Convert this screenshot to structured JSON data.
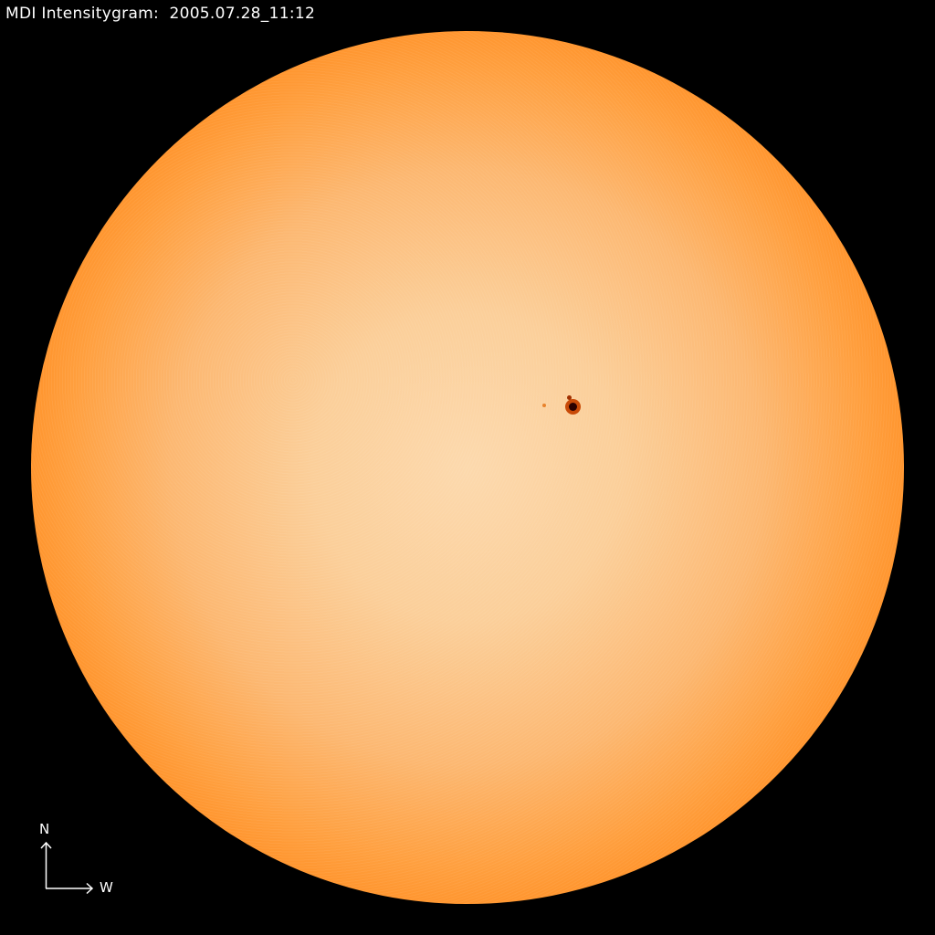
{
  "title": "MDI Intensitygram:  2005.07.28_11:12",
  "compass": {
    "north_label": "N",
    "west_label": "W"
  },
  "colors": {
    "background": "#000000",
    "disk_center": "#fcd9ad",
    "disk_mid": "#ff9f3e",
    "limb": "#7a0800",
    "sunspot": "#2a0000"
  }
}
